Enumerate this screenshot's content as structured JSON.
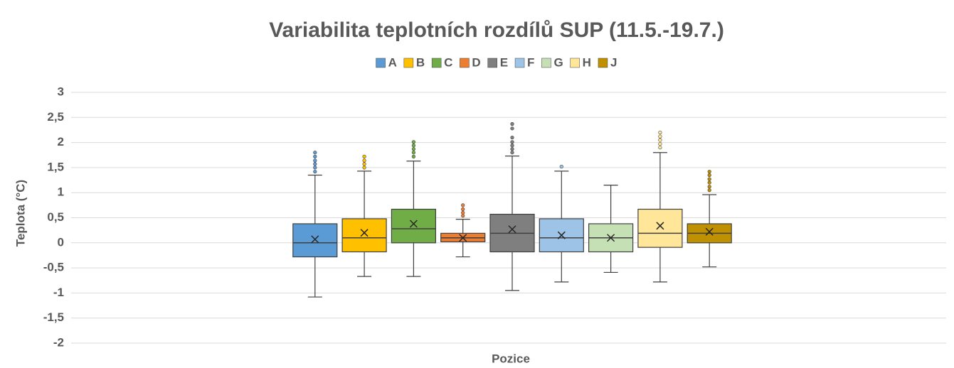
{
  "chart_data": {
    "type": "box",
    "title": "Variabilita teplotních rozdílů SUP (11.5.-19.7.)",
    "x_label": "Pozice",
    "y_label": "Teplota (°C)",
    "ylim": [
      -2,
      3
    ],
    "yticks": [
      -2,
      {
        "value": -1.5,
        "label": "-1,5"
      },
      -1,
      {
        "value": -0.5,
        "label": "-0,5"
      },
      0,
      {
        "value": 0.5,
        "label": "0,5"
      },
      1,
      {
        "value": 1.5,
        "label": "1,5"
      },
      2,
      {
        "value": 2.5,
        "label": "2,5"
      },
      3
    ],
    "grid": true,
    "legend": "top",
    "series": [
      {
        "name": "A",
        "color": "#5b9bd5",
        "min": -1.08,
        "q1": -0.28,
        "median": 0,
        "q3": 0.38,
        "max": 1.35,
        "mean": 0.07,
        "outliers": [
          1.42,
          1.5,
          1.57,
          1.64,
          1.72,
          1.8
        ]
      },
      {
        "name": "B",
        "color": "#ffc000",
        "min": -0.67,
        "q1": -0.18,
        "median": 0.1,
        "q3": 0.48,
        "max": 1.43,
        "mean": 0.2,
        "outliers": [
          1.5,
          1.57,
          1.64,
          1.72
        ]
      },
      {
        "name": "C",
        "color": "#70ad47",
        "min": -0.67,
        "q1": 0,
        "median": 0.28,
        "q3": 0.67,
        "max": 1.63,
        "mean": 0.38,
        "outliers": [
          1.72,
          1.8,
          1.87,
          1.94,
          2.01
        ]
      },
      {
        "name": "D",
        "color": "#ed7d31",
        "min": -0.28,
        "q1": 0.02,
        "median": 0.1,
        "q3": 0.19,
        "max": 0.47,
        "mean": 0.1,
        "outliers": [
          0.54,
          0.6,
          0.67,
          0.75
        ]
      },
      {
        "name": "E",
        "color": "#7f7f7f",
        "min": -0.95,
        "q1": -0.18,
        "median": 0.19,
        "q3": 0.57,
        "max": 1.73,
        "mean": 0.27,
        "outliers": [
          1.8,
          1.87,
          1.94,
          2.01,
          2.1,
          2.28,
          2.37
        ]
      },
      {
        "name": "F",
        "color": "#9dc3e6",
        "min": -0.78,
        "q1": -0.18,
        "median": 0.1,
        "q3": 0.48,
        "max": 1.43,
        "mean": 0.15,
        "outliers": [
          1.52
        ]
      },
      {
        "name": "G",
        "color": "#c5e0b4",
        "min": -0.59,
        "q1": -0.18,
        "median": 0.1,
        "q3": 0.38,
        "max": 1.15,
        "mean": 0.1,
        "outliers": []
      },
      {
        "name": "H",
        "color": "#ffe699",
        "min": -0.78,
        "q1": -0.09,
        "median": 0.19,
        "q3": 0.67,
        "max": 1.8,
        "mean": 0.34,
        "outliers": [
          1.9,
          1.97,
          2.05,
          2.12,
          2.2
        ]
      },
      {
        "name": "J",
        "color": "#bf9000",
        "min": -0.48,
        "q1": 0,
        "median": 0.19,
        "q3": 0.38,
        "max": 0.96,
        "mean": 0.22,
        "outliers": [
          1.05,
          1.12,
          1.2,
          1.27,
          1.35,
          1.42
        ]
      }
    ]
  }
}
